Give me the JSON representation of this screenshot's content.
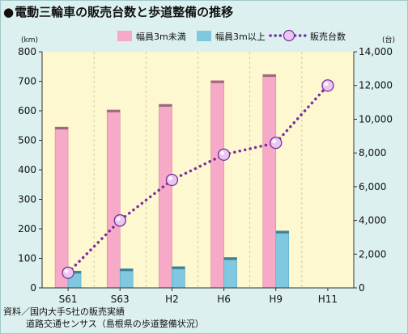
{
  "title": "電動三輪車の販売台数と歩道整備の推移",
  "title_bullet": "●",
  "source": {
    "line1": "資料／国内大手S社の販売実績",
    "line2": "道路交通センサス（島根県の歩道整備状況）"
  },
  "chart_data": {
    "type": "bar",
    "categories": [
      "S61",
      "S63",
      "H2",
      "H6",
      "H9",
      "H11"
    ],
    "series": [
      {
        "name": "幅員3m未満",
        "type": "bar",
        "axis": "left",
        "color": "#f7aac8",
        "values": [
          545,
          603,
          622,
          702,
          723,
          null
        ]
      },
      {
        "name": "幅員3m以上",
        "type": "bar",
        "axis": "left",
        "color": "#7fc8df",
        "values": [
          57,
          65,
          72,
          103,
          193,
          null
        ]
      },
      {
        "name": "販売台数",
        "type": "line",
        "axis": "right",
        "color": "#7a2fa0",
        "values": [
          900,
          4000,
          6400,
          7900,
          8600,
          12000
        ]
      }
    ],
    "left_axis": {
      "unit": "(km)",
      "ylim": [
        0,
        800
      ],
      "ticks": [
        "0",
        "100",
        "200",
        "300",
        "400",
        "500",
        "600",
        "700",
        "800"
      ]
    },
    "right_axis": {
      "unit": "(台)",
      "ylim": [
        0,
        14000
      ],
      "ticks": [
        "0",
        "2,000",
        "4,000",
        "6,000",
        "8,000",
        "10,000",
        "12,000",
        "14,000"
      ]
    },
    "grid": "vertical dashed",
    "legend_position": "top-right",
    "plot_background": "#fdf8d0"
  }
}
